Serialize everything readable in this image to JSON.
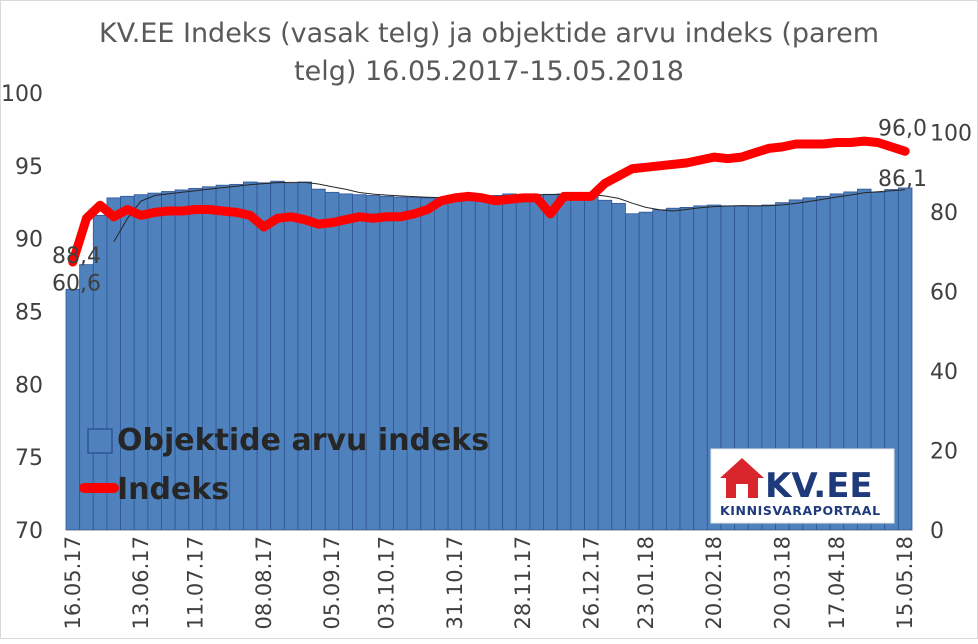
{
  "chart_data": {
    "type": "bar+line",
    "title_lines": [
      "KV.EE Indeks (vasak telg) ja objektide arvu indeks (parem",
      "telg) 16.05.2017-15.05.2018"
    ],
    "left_axis": {
      "min": 70,
      "max": 100,
      "ticks": [
        "70",
        "75",
        "80",
        "85",
        "90",
        "95",
        "100"
      ]
    },
    "right_axis": {
      "min": 0,
      "max": 110,
      "ticks": [
        "0",
        "20",
        "40",
        "60",
        "80",
        "100"
      ]
    },
    "x_tick_labels": [
      "16.05.17",
      "13.06.17",
      "11.07.17",
      "08.08.17",
      "05.09.17",
      "03.10.17",
      "31.10.17",
      "28.11.17",
      "26.12.17",
      "23.01.18",
      "20.02.18",
      "20.03.18",
      "17.04.18",
      "15.05.18"
    ],
    "series": [
      {
        "name": "Objektide arvu indeks",
        "type": "bar",
        "axis": "right",
        "color": "#4f81bd",
        "values": [
          60.6,
          66.8,
          79.2,
          83.6,
          84.0,
          84.4,
          84.8,
          85.2,
          85.6,
          86.0,
          86.4,
          86.8,
          87.0,
          87.6,
          87.4,
          87.8,
          87.2,
          87.6,
          85.8,
          85.0,
          84.6,
          84.4,
          84.2,
          84.0,
          83.8,
          83.7,
          83.6,
          83.6,
          83.7,
          84.0,
          84.1,
          84.2,
          84.6,
          84.3,
          84.4,
          84.5,
          84.6,
          84.5,
          84.2,
          83.0,
          82.2,
          79.6,
          80.0,
          80.6,
          81.0,
          81.2,
          81.6,
          81.8,
          81.6,
          81.6,
          81.5,
          81.8,
          82.4,
          83.1,
          83.6,
          84.0,
          84.6,
          85.1,
          85.8,
          85.0,
          85.7,
          86.1
        ]
      },
      {
        "name": "Indeks",
        "type": "line",
        "axis": "left",
        "color": "#ff0000",
        "values": [
          88.4,
          91.4,
          92.3,
          91.5,
          92.0,
          91.6,
          91.8,
          91.9,
          91.9,
          92.0,
          92.0,
          91.9,
          91.8,
          91.6,
          90.8,
          91.4,
          91.5,
          91.3,
          91.0,
          91.1,
          91.3,
          91.5,
          91.4,
          91.5,
          91.5,
          91.7,
          92.0,
          92.6,
          92.8,
          92.9,
          92.8,
          92.6,
          92.7,
          92.8,
          92.8,
          91.7,
          92.9,
          92.9,
          92.9,
          93.8,
          94.3,
          94.8,
          94.9,
          95.0,
          95.1,
          95.2,
          95.4,
          95.6,
          95.5,
          95.6,
          95.9,
          96.2,
          96.3,
          96.5,
          96.5,
          96.5,
          96.6,
          96.6,
          96.7,
          96.6,
          96.3,
          96.0
        ]
      }
    ],
    "data_labels": {
      "bar_first": "60,6",
      "bar_last": "86,1",
      "line_first": "88,4",
      "line_last": "96,0"
    },
    "legend": {
      "position": "bottom-left",
      "items": [
        {
          "label": "Objektide arvu indeks",
          "color": "#4f81bd",
          "marker": "box"
        },
        {
          "label": "Indeks",
          "color": "#ff0000",
          "marker": "line"
        }
      ]
    },
    "gridlines": false
  },
  "logo": {
    "name": "KV.EE",
    "subtitle": "KINNISVARAPORTAAL",
    "icon": "house-icon",
    "accent_color": "#d9262c",
    "text_color": "#1e3a7b"
  }
}
